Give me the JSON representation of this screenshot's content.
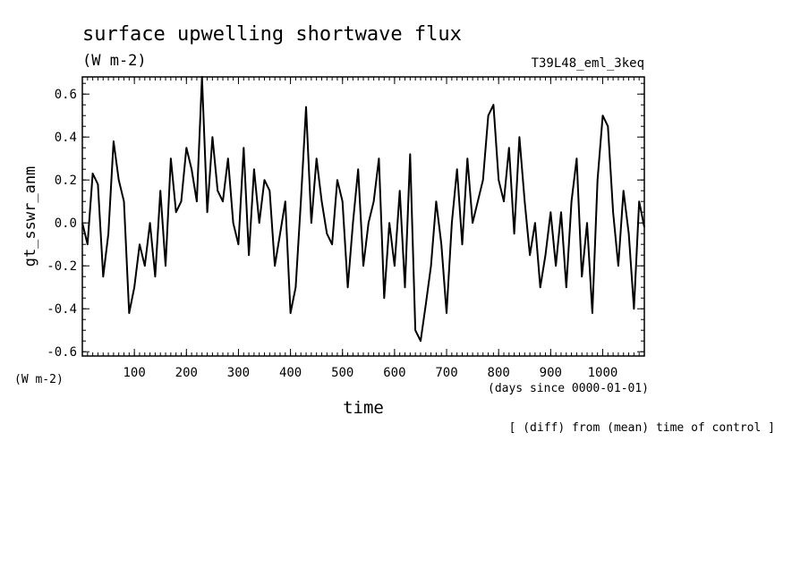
{
  "chart_data": {
    "type": "line",
    "title": "surface upwelling shortwave flux",
    "units_top": "(W m-2)",
    "run_id": "T39L48_eml_3keq",
    "ylabel": "gt_sswr_anm",
    "yunit": "(W m-2)",
    "xlabel": "time",
    "xunit": "(days since 0000-01-01)",
    "footnote": "[ (diff) from (mean) time of control ]",
    "xlim": [
      0,
      1080
    ],
    "ylim": [
      -0.62,
      0.68
    ],
    "xticks": [
      100,
      200,
      300,
      400,
      500,
      600,
      700,
      800,
      900,
      1000
    ],
    "yticks": [
      -0.6,
      -0.4,
      -0.2,
      0.0,
      0.2,
      0.4,
      0.6
    ],
    "ytick_labels": [
      "-0.6",
      "-0.4",
      "-0.2",
      "0.0",
      "0.2",
      "0.4",
      "0.6"
    ],
    "grid": false,
    "series": [
      {
        "x": [
          0,
          10,
          20,
          30,
          40,
          50,
          60,
          70,
          80,
          90,
          100,
          110,
          120,
          130,
          140,
          150,
          160,
          170,
          180,
          190,
          200,
          210,
          220,
          230,
          240,
          250,
          260,
          270,
          280,
          290,
          300,
          310,
          320,
          330,
          340,
          350,
          360,
          370,
          380,
          390,
          400,
          410,
          420,
          430,
          440,
          450,
          460,
          470,
          480,
          490,
          500,
          510,
          520,
          530,
          540,
          550,
          560,
          570,
          580,
          590,
          600,
          610,
          620,
          630,
          640,
          650,
          660,
          670,
          680,
          690,
          700,
          710,
          720,
          730,
          740,
          750,
          760,
          770,
          780,
          790,
          800,
          810,
          820,
          830,
          840,
          850,
          860,
          870,
          880,
          890,
          900,
          910,
          920,
          930,
          940,
          950,
          960,
          970,
          980,
          990,
          1000,
          1010,
          1020,
          1030,
          1040,
          1050,
          1060,
          1070,
          1080
        ],
        "values": [
          0.0,
          -0.1,
          0.23,
          0.18,
          -0.25,
          -0.05,
          0.38,
          0.2,
          0.1,
          -0.42,
          -0.3,
          -0.1,
          -0.2,
          0.0,
          -0.25,
          0.15,
          -0.2,
          0.3,
          0.05,
          0.1,
          0.35,
          0.25,
          0.1,
          0.68,
          0.05,
          0.4,
          0.15,
          0.1,
          0.3,
          0.0,
          -0.1,
          0.35,
          -0.15,
          0.25,
          0.0,
          0.2,
          0.15,
          -0.2,
          -0.05,
          0.1,
          -0.42,
          -0.3,
          0.1,
          0.54,
          0.0,
          0.3,
          0.1,
          -0.05,
          -0.1,
          0.2,
          0.1,
          -0.3,
          0.0,
          0.25,
          -0.2,
          0.0,
          0.1,
          0.3,
          -0.35,
          0.0,
          -0.2,
          0.15,
          -0.3,
          0.32,
          -0.5,
          -0.55,
          -0.38,
          -0.2,
          0.1,
          -0.1,
          -0.42,
          0.0,
          0.25,
          -0.1,
          0.3,
          0.0,
          0.1,
          0.2,
          0.5,
          0.55,
          0.2,
          0.1,
          0.35,
          -0.05,
          0.4,
          0.1,
          -0.15,
          0.0,
          -0.3,
          -0.15,
          0.05,
          -0.2,
          0.05,
          -0.3,
          0.1,
          0.3,
          -0.25,
          0.0,
          -0.42,
          0.2,
          0.5,
          0.45,
          0.05,
          -0.2,
          0.15,
          -0.05,
          -0.4,
          0.1,
          -0.02
        ]
      }
    ]
  }
}
